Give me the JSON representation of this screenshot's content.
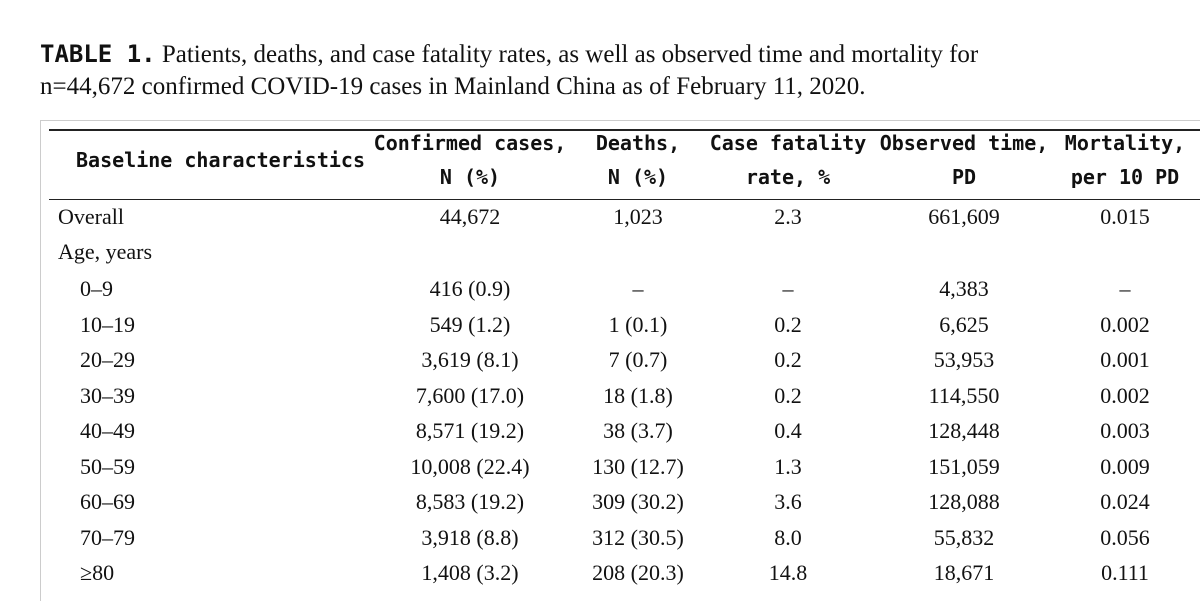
{
  "caption": {
    "label": "TABLE 1.",
    "line1": "Patients, deaths, and case fatality rates, as well as observed time and mortality for",
    "line2": "n=44,672 confirmed COVID-19 cases in Mainland China as of February 11, 2020."
  },
  "headers": {
    "baseline": "Baseline characteristics",
    "confirmed": [
      "Confirmed cases,",
      "N (%)"
    ],
    "deaths": [
      "Deaths,",
      "N (%)"
    ],
    "cfr": [
      "Case fatality",
      "rate, %"
    ],
    "observed": [
      "Observed time,",
      "PD"
    ],
    "mortality": [
      "Mortality,",
      "per 10 PD"
    ]
  },
  "overall": {
    "label": "Overall",
    "confirmed": "44,672",
    "deaths": "1,023",
    "cfr": "2.3",
    "observed": "661,609",
    "mortality": "0.015"
  },
  "age_section": "Age, years",
  "rows": [
    {
      "label": "0–9",
      "confirmed": "416 (0.9)",
      "deaths": "–",
      "cfr": "–",
      "observed": "4,383",
      "mortality": "–"
    },
    {
      "label": "10–19",
      "confirmed": "549 (1.2)",
      "deaths": "1 (0.1)",
      "cfr": "0.2",
      "observed": "6,625",
      "mortality": "0.002"
    },
    {
      "label": "20–29",
      "confirmed": "3,619 (8.1)",
      "deaths": "7 (0.7)",
      "cfr": "0.2",
      "observed": "53,953",
      "mortality": "0.001"
    },
    {
      "label": "30–39",
      "confirmed": "7,600 (17.0)",
      "deaths": "18 (1.8)",
      "cfr": "0.2",
      "observed": "114,550",
      "mortality": "0.002"
    },
    {
      "label": "40–49",
      "confirmed": "8,571 (19.2)",
      "deaths": "38 (3.7)",
      "cfr": "0.4",
      "observed": "128,448",
      "mortality": "0.003"
    },
    {
      "label": "50–59",
      "confirmed": "10,008 (22.4)",
      "deaths": "130 (12.7)",
      "cfr": "1.3",
      "observed": "151,059",
      "mortality": "0.009"
    },
    {
      "label": "60–69",
      "confirmed": "8,583 (19.2)",
      "deaths": "309 (30.2)",
      "cfr": "3.6",
      "observed": "128,088",
      "mortality": "0.024"
    },
    {
      "label": "70–79",
      "confirmed": "3,918 (8.8)",
      "deaths": "312 (30.5)",
      "cfr": "8.0",
      "observed": "55,832",
      "mortality": "0.056"
    },
    {
      "label": "≥80",
      "confirmed": "1,408 (3.2)",
      "deaths": "208 (20.3)",
      "cfr": "14.8",
      "observed": "18,671",
      "mortality": "0.111"
    }
  ]
}
